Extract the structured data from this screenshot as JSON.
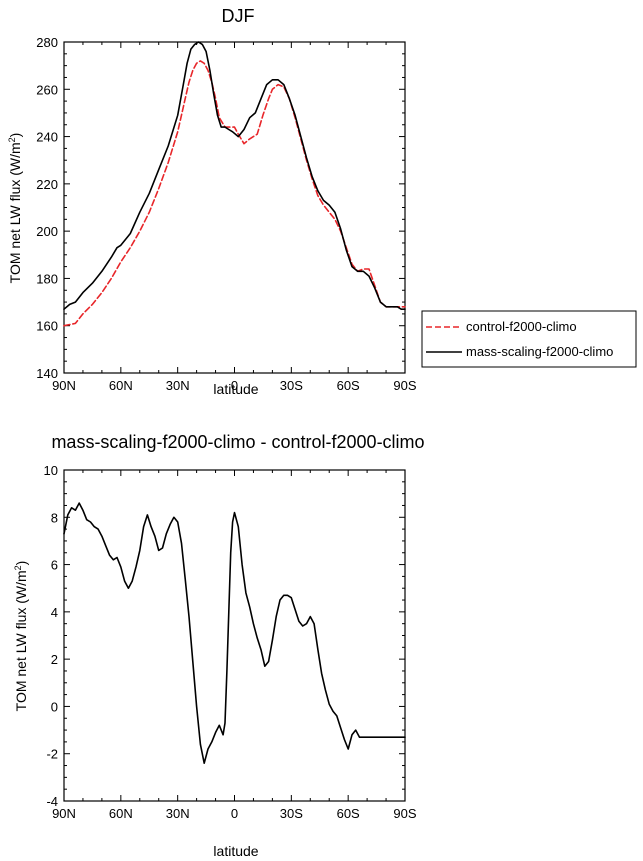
{
  "chart_data": [
    {
      "type": "line",
      "title": "DJF",
      "xlabel": "latitude",
      "ylabel": "TOM net LW flux (W/m",
      "ylabel_sup": "2",
      "ylabel_close": ")",
      "xlim": [
        90,
        -90
      ],
      "ylim": [
        140,
        280
      ],
      "x_tick_values": [
        90,
        60,
        30,
        0,
        -30,
        -60,
        -90
      ],
      "x_tick_labels": [
        "90N",
        "60N",
        "30N",
        "0",
        "30S",
        "60S",
        "90S"
      ],
      "y_tick_values": [
        140,
        160,
        180,
        200,
        220,
        240,
        260,
        280
      ],
      "y_tick_labels": [
        "140",
        "160",
        "180",
        "200",
        "220",
        "240",
        "260",
        "280"
      ],
      "legend": [
        "control-f2000-climo",
        "mass-scaling-f2000-climo"
      ],
      "series": [
        {
          "name": "control-f2000-climo",
          "color": "#e8262a",
          "dash": true,
          "x": [
            90,
            84,
            80,
            75,
            70,
            65,
            60,
            55,
            50,
            45,
            40,
            35,
            30,
            26,
            24,
            22,
            20,
            18,
            16,
            14,
            12,
            10,
            8,
            5,
            2,
            0,
            -2,
            -5,
            -8,
            -12,
            -15,
            -18,
            -20,
            -23,
            -26,
            -29,
            -32,
            -35,
            -38,
            -41,
            -44,
            -47,
            -50,
            -53,
            -56,
            -59,
            -62,
            -65,
            -68,
            -71,
            -74,
            -77,
            -80,
            -82,
            -84,
            -86,
            -88,
            -90
          ],
          "values": [
            160,
            161,
            165,
            169,
            174,
            180,
            187,
            193,
            200,
            208,
            218,
            229,
            242,
            256,
            263,
            268,
            271,
            272,
            271,
            268,
            263,
            256,
            248,
            244,
            244,
            244,
            241,
            237,
            239,
            241,
            249,
            256,
            260,
            262,
            261,
            256,
            248,
            239,
            230,
            222,
            215,
            211,
            208,
            205,
            200,
            193,
            186,
            183,
            184,
            184,
            177,
            170,
            168,
            168,
            168,
            168,
            168,
            168
          ]
        },
        {
          "name": "mass-scaling-f2000-climo",
          "color": "#000000",
          "dash": false,
          "x": [
            90,
            87,
            84,
            80,
            75,
            70,
            65,
            62,
            60,
            55,
            50,
            45,
            40,
            35,
            30,
            27,
            25,
            23,
            21,
            19,
            17,
            15,
            13,
            11,
            9,
            7,
            5,
            3,
            1,
            -2,
            -5,
            -8,
            -11,
            -14,
            -17,
            -20,
            -23,
            -26,
            -29,
            -32,
            -35,
            -38,
            -41,
            -44,
            -47,
            -50,
            -53,
            -56,
            -59,
            -62,
            -65,
            -68,
            -71,
            -74,
            -77,
            -80,
            -82,
            -84,
            -86,
            -88,
            -90
          ],
          "values": [
            167,
            169,
            170,
            174,
            178,
            183,
            189,
            193,
            194,
            199,
            208,
            216,
            226,
            236,
            249,
            262,
            271,
            277,
            279,
            280,
            279,
            276,
            268,
            258,
            249,
            244,
            244,
            243,
            242,
            240,
            243,
            248,
            250,
            256,
            262,
            264,
            264,
            262,
            256,
            249,
            240,
            231,
            223,
            217,
            213,
            211,
            208,
            201,
            192,
            185,
            183,
            183,
            181,
            176,
            170,
            168,
            168,
            168,
            168,
            167,
            167
          ]
        }
      ]
    },
    {
      "type": "line",
      "title": "mass-scaling-f2000-climo - control-f2000-climo",
      "xlabel": "latitude",
      "ylabel": "TOM net LW flux (W/m",
      "ylabel_sup": "2",
      "ylabel_close": ")",
      "xlim": [
        90,
        -90
      ],
      "ylim": [
        -4,
        10
      ],
      "x_tick_values": [
        90,
        60,
        30,
        0,
        -30,
        -60,
        -90
      ],
      "x_tick_labels": [
        "90N",
        "60N",
        "30N",
        "0",
        "30S",
        "60S",
        "90S"
      ],
      "y_tick_values": [
        -4,
        -2,
        0,
        2,
        4,
        6,
        8,
        10
      ],
      "y_tick_labels": [
        "-4",
        "-2",
        "0",
        "2",
        "4",
        "6",
        "8",
        "10"
      ],
      "series": [
        {
          "name": "mass-scaling-f2000-climo - control-f2000-climo",
          "color": "#000000",
          "dash": false,
          "x": [
            90,
            88,
            86,
            84,
            82,
            80,
            78,
            76,
            74,
            72,
            70,
            68,
            66,
            64,
            62,
            60,
            58,
            56,
            54,
            52,
            50,
            48,
            46,
            44,
            42,
            40,
            38,
            36,
            34,
            32,
            30,
            28,
            26,
            24,
            22,
            20,
            18,
            16,
            14,
            12,
            10,
            8,
            6,
            5,
            4,
            3,
            2,
            1,
            0,
            -2,
            -4,
            -6,
            -8,
            -10,
            -12,
            -14,
            -16,
            -18,
            -20,
            -22,
            -24,
            -26,
            -28,
            -30,
            -32,
            -34,
            -36,
            -38,
            -40,
            -42,
            -44,
            -46,
            -48,
            -50,
            -52,
            -54,
            -56,
            -58,
            -60,
            -62,
            -64,
            -66,
            -68,
            -70,
            -72,
            -74,
            -76,
            -78,
            -80,
            -82,
            -84,
            -86,
            -88,
            -90
          ],
          "values": [
            7.3,
            8.1,
            8.4,
            8.3,
            8.6,
            8.3,
            7.9,
            7.8,
            7.6,
            7.5,
            7.2,
            6.8,
            6.4,
            6.2,
            6.3,
            5.9,
            5.3,
            5.0,
            5.3,
            5.9,
            6.6,
            7.6,
            8.1,
            7.6,
            7.2,
            6.6,
            6.7,
            7.3,
            7.7,
            8.0,
            7.8,
            6.9,
            5.4,
            3.8,
            1.9,
            0.0,
            -1.6,
            -2.4,
            -1.8,
            -1.5,
            -1.1,
            -0.8,
            -1.2,
            -0.7,
            1.5,
            4.0,
            6.5,
            7.8,
            8.2,
            7.6,
            6.0,
            4.8,
            4.2,
            3.5,
            2.9,
            2.4,
            1.7,
            1.9,
            2.8,
            3.8,
            4.5,
            4.7,
            4.7,
            4.6,
            4.1,
            3.6,
            3.4,
            3.5,
            3.8,
            3.5,
            2.4,
            1.4,
            0.7,
            0.1,
            -0.2,
            -0.4,
            -0.9,
            -1.4,
            -1.8,
            -1.2,
            -1.0,
            -1.3,
            -1.3,
            -1.3,
            -1.3,
            -1.3,
            -1.3,
            -1.3,
            -1.3,
            -1.3,
            -1.3,
            -1.3,
            -1.3,
            -1.3
          ]
        }
      ]
    }
  ]
}
